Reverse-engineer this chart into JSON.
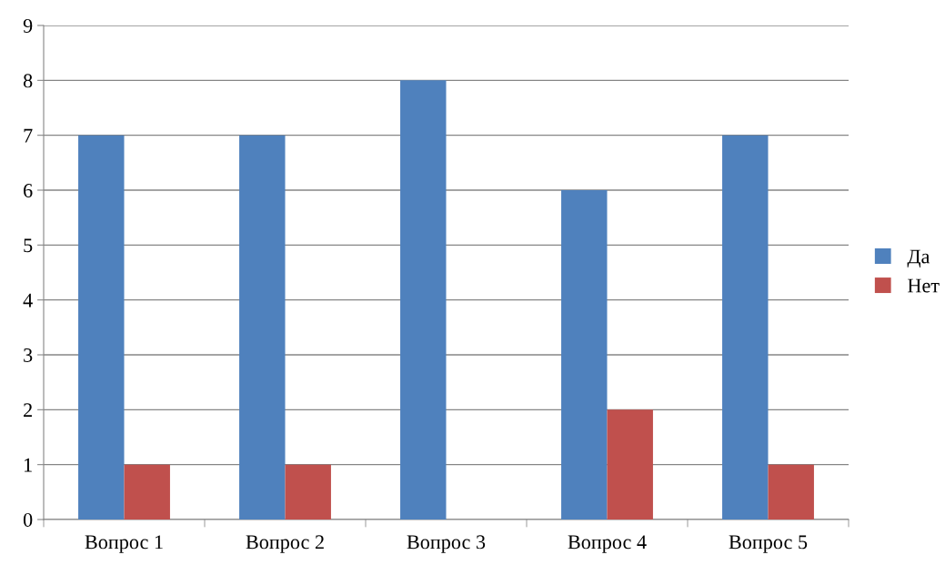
{
  "chart_data": {
    "type": "bar",
    "categories": [
      "Вопрос 1",
      "Вопрос 2",
      "Вопрос 3",
      "Вопрос 4",
      "Вопрос 5"
    ],
    "series": [
      {
        "name": "Да",
        "color": "#4f81bd",
        "values": [
          7,
          7,
          8,
          6,
          7
        ]
      },
      {
        "name": "Нет",
        "color": "#c0504d",
        "values": [
          1,
          1,
          0,
          2,
          1
        ]
      }
    ],
    "ylim": [
      0,
      9
    ],
    "yticks": [
      0,
      1,
      2,
      3,
      4,
      5,
      6,
      7,
      8,
      9
    ],
    "grid": "y",
    "legend": "right"
  }
}
